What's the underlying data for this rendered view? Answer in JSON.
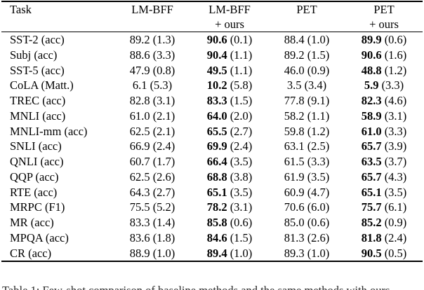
{
  "colors": {
    "background": "#ffffff",
    "text": "#000000",
    "rule": "#000000"
  },
  "table": {
    "header": {
      "task": "Task",
      "cols": [
        {
          "line1": "LM-BFF",
          "line2": ""
        },
        {
          "line1": "LM-BFF",
          "line2": "+ ours"
        },
        {
          "line1": "PET",
          "line2": ""
        },
        {
          "line1": "PET",
          "line2": "+ ours"
        }
      ]
    },
    "rows": [
      {
        "task": "SST-2 (acc)",
        "cells": [
          [
            "89.2",
            "(1.3)"
          ],
          [
            "90.6",
            "(0.1)"
          ],
          [
            "88.4",
            "(1.0)"
          ],
          [
            "89.9",
            "(0.6)"
          ]
        ]
      },
      {
        "task": "Subj (acc)",
        "cells": [
          [
            "88.6",
            "(3.3)"
          ],
          [
            "90.4",
            "(1.1)"
          ],
          [
            "89.2",
            "(1.5)"
          ],
          [
            "90.6",
            "(1.6)"
          ]
        ]
      },
      {
        "task": "SST-5 (acc)",
        "cells": [
          [
            "47.9",
            "(0.8)"
          ],
          [
            "49.5",
            "(1.1)"
          ],
          [
            "46.0",
            "(0.9)"
          ],
          [
            "48.8",
            "(1.2)"
          ]
        ]
      },
      {
        "task": "CoLA (Matt.)",
        "cells": [
          [
            "6.1",
            "(5.3)"
          ],
          [
            "10.2",
            "(5.8)"
          ],
          [
            "3.5",
            "(3.4)"
          ],
          [
            "5.9",
            "(3.3)"
          ]
        ]
      },
      {
        "task": "TREC (acc)",
        "cells": [
          [
            "82.8",
            "(3.1)"
          ],
          [
            "83.3",
            "(1.5)"
          ],
          [
            "77.8",
            "(9.1)"
          ],
          [
            "82.3",
            "(4.6)"
          ]
        ]
      },
      {
        "task": "MNLI (acc)",
        "cells": [
          [
            "61.0",
            "(2.1)"
          ],
          [
            "64.0",
            "(2.0)"
          ],
          [
            "58.2",
            "(1.1)"
          ],
          [
            "58.9",
            "(3.1)"
          ]
        ]
      },
      {
        "task": "MNLI-mm (acc)",
        "cells": [
          [
            "62.5",
            "(2.1)"
          ],
          [
            "65.5",
            "(2.7)"
          ],
          [
            "59.8",
            "(1.2)"
          ],
          [
            "61.0",
            "(3.3)"
          ]
        ]
      },
      {
        "task": "SNLI (acc)",
        "cells": [
          [
            "66.9",
            "(2.4)"
          ],
          [
            "69.9",
            "(2.4)"
          ],
          [
            "63.1",
            "(2.5)"
          ],
          [
            "65.7",
            "(3.9)"
          ]
        ]
      },
      {
        "task": "QNLI (acc)",
        "cells": [
          [
            "60.7",
            "(1.7)"
          ],
          [
            "66.4",
            "(3.5)"
          ],
          [
            "61.5",
            "(3.3)"
          ],
          [
            "63.5",
            "(3.7)"
          ]
        ]
      },
      {
        "task": "QQP (acc)",
        "cells": [
          [
            "62.5",
            "(2.6)"
          ],
          [
            "68.8",
            "(3.8)"
          ],
          [
            "61.9",
            "(3.5)"
          ],
          [
            "65.7",
            "(4.3)"
          ]
        ]
      },
      {
        "task": "RTE (acc)",
        "cells": [
          [
            "64.3",
            "(2.7)"
          ],
          [
            "65.1",
            "(3.5)"
          ],
          [
            "60.9",
            "(4.7)"
          ],
          [
            "65.1",
            "(3.5)"
          ]
        ]
      },
      {
        "task": "MRPC (F1)",
        "cells": [
          [
            "75.5",
            "(5.2)"
          ],
          [
            "78.2",
            "(3.1)"
          ],
          [
            "70.6",
            "(6.0)"
          ],
          [
            "75.7",
            "(6.1)"
          ]
        ]
      },
      {
        "task": "MR (acc)",
        "cells": [
          [
            "83.3",
            "(1.4)"
          ],
          [
            "85.8",
            "(0.6)"
          ],
          [
            "85.0",
            "(0.6)"
          ],
          [
            "85.2",
            "(0.9)"
          ]
        ]
      },
      {
        "task": "MPQA (acc)",
        "cells": [
          [
            "83.6",
            "(1.8)"
          ],
          [
            "84.6",
            "(1.5)"
          ],
          [
            "81.3",
            "(2.6)"
          ],
          [
            "81.8",
            "(2.4)"
          ]
        ]
      },
      {
        "task": "CR (acc)",
        "cells": [
          [
            "88.9",
            "(1.0)"
          ],
          [
            "89.4",
            "(1.0)"
          ],
          [
            "89.3",
            "(1.0)"
          ],
          [
            "90.5",
            "(0.5)"
          ]
        ]
      }
    ],
    "bold_columns_note": "values in + ours columns are bold"
  },
  "caption_partial": "Table 1: Few-shot comparison of baseline methods and the same methods with ours"
}
